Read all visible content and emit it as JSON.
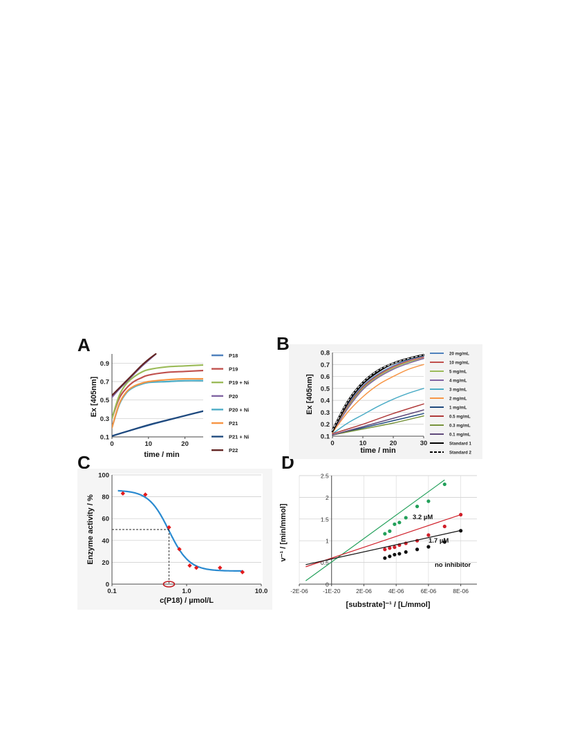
{
  "panels": {
    "A": {
      "letter": "A"
    },
    "B": {
      "letter": "B"
    },
    "C": {
      "letter": "C"
    },
    "D": {
      "letter": "D"
    }
  },
  "chart_data": [
    {
      "id": "A",
      "type": "line",
      "xlabel": "time / min",
      "ylabel": "Ex [405nm]",
      "xlim": [
        0,
        25
      ],
      "ylim": [
        0.1,
        1.0
      ],
      "xticks": [
        "0",
        "10",
        "20"
      ],
      "yticks": [
        "0.1",
        "0.3",
        "0.5",
        "0.7",
        "0.9"
      ],
      "grid": true,
      "legend_position": "right",
      "series": [
        {
          "name": "P18",
          "color": "#4f81bd",
          "x": [
            0,
            5,
            10,
            15,
            20,
            25
          ],
          "y": [
            0.11,
            0.17,
            0.225,
            0.28,
            0.33,
            0.38
          ]
        },
        {
          "name": "P19",
          "color": "#c0504d",
          "x": [
            0,
            2,
            4,
            6,
            8,
            10,
            15,
            20,
            25
          ],
          "y": [
            0.3,
            0.52,
            0.63,
            0.7,
            0.74,
            0.77,
            0.8,
            0.81,
            0.82
          ]
        },
        {
          "name": "P19 + Ni",
          "color": "#9bbb59",
          "x": [
            0,
            2,
            4,
            6,
            8,
            10,
            15,
            20,
            25
          ],
          "y": [
            0.3,
            0.55,
            0.68,
            0.75,
            0.8,
            0.83,
            0.86,
            0.87,
            0.88
          ]
        },
        {
          "name": "P20",
          "color": "#8064a2",
          "x": [
            0,
            2,
            4,
            6,
            8,
            10,
            12
          ],
          "y": [
            0.53,
            0.62,
            0.7,
            0.78,
            0.86,
            0.93,
            1.0
          ]
        },
        {
          "name": "P20 + Ni",
          "color": "#4bacc6",
          "x": [
            0,
            2,
            4,
            6,
            8,
            10,
            15,
            20,
            25
          ],
          "y": [
            0.2,
            0.45,
            0.58,
            0.64,
            0.67,
            0.69,
            0.7,
            0.71,
            0.71
          ]
        },
        {
          "name": "P21",
          "color": "#f79646",
          "x": [
            0,
            2,
            4,
            6,
            8,
            10,
            15,
            20,
            25
          ],
          "y": [
            0.2,
            0.46,
            0.59,
            0.65,
            0.68,
            0.7,
            0.72,
            0.73,
            0.73
          ]
        },
        {
          "name": "P21 + Ni",
          "color": "#1f497d",
          "x": [
            0,
            5,
            10,
            15,
            20,
            25
          ],
          "y": [
            0.11,
            0.17,
            0.23,
            0.28,
            0.33,
            0.38
          ]
        },
        {
          "name": "P22",
          "color": "#632523",
          "x": [
            0,
            2,
            4,
            6,
            8,
            10,
            12
          ],
          "y": [
            0.55,
            0.63,
            0.71,
            0.79,
            0.87,
            0.94,
            1.0
          ]
        }
      ]
    },
    {
      "id": "B",
      "type": "line",
      "xlabel": "time / min",
      "ylabel": "Ex [405nm]",
      "xlim": [
        0,
        30
      ],
      "ylim": [
        0.1,
        0.8
      ],
      "xticks": [
        "0",
        "10",
        "20",
        "30"
      ],
      "yticks": [
        "0.1",
        "0.2",
        "0.3",
        "0.4",
        "0.5",
        "0.6",
        "0.7",
        "0.8"
      ],
      "grid": true,
      "legend_position": "right",
      "series": [
        {
          "name": "20 mg/mL",
          "color": "#4f81bd",
          "x": [
            0,
            5,
            10,
            15,
            20,
            25,
            30
          ],
          "y": [
            0.13,
            0.36,
            0.52,
            0.62,
            0.69,
            0.74,
            0.77
          ]
        },
        {
          "name": "10 mg/mL",
          "color": "#c0504d",
          "x": [
            0,
            5,
            10,
            15,
            20,
            25,
            30
          ],
          "y": [
            0.13,
            0.35,
            0.51,
            0.61,
            0.68,
            0.73,
            0.76
          ]
        },
        {
          "name": "5 mg/mL",
          "color": "#9bbb59",
          "x": [
            0,
            5,
            10,
            15,
            20,
            25,
            30
          ],
          "y": [
            0.13,
            0.34,
            0.5,
            0.6,
            0.67,
            0.72,
            0.75
          ]
        },
        {
          "name": "4 mg/mL",
          "color": "#8064a2",
          "x": [
            0,
            5,
            10,
            15,
            20,
            25,
            30
          ],
          "y": [
            0.13,
            0.33,
            0.49,
            0.59,
            0.66,
            0.71,
            0.75
          ]
        },
        {
          "name": "3 mg/mL",
          "color": "#4bacc6",
          "x": [
            0,
            5,
            10,
            15,
            20,
            25,
            30
          ],
          "y": [
            0.12,
            0.21,
            0.28,
            0.35,
            0.41,
            0.46,
            0.5
          ]
        },
        {
          "name": "2 mg/mL",
          "color": "#f79646",
          "x": [
            0,
            5,
            10,
            15,
            20,
            25,
            30
          ],
          "y": [
            0.13,
            0.3,
            0.43,
            0.53,
            0.6,
            0.66,
            0.7
          ]
        },
        {
          "name": "1 mg/mL",
          "color": "#1f497d",
          "x": [
            0,
            10,
            20,
            30
          ],
          "y": [
            0.11,
            0.17,
            0.23,
            0.29
          ]
        },
        {
          "name": "0.5 mg/mL",
          "color": "#b03a3a",
          "x": [
            0,
            10,
            20,
            30
          ],
          "y": [
            0.12,
            0.2,
            0.29,
            0.37
          ]
        },
        {
          "name": "0.3 mg/mL",
          "color": "#77933c",
          "x": [
            0,
            10,
            20,
            30
          ],
          "y": [
            0.11,
            0.16,
            0.21,
            0.27
          ]
        },
        {
          "name": "0.1 mg/mL",
          "color": "#5f497a",
          "x": [
            0,
            10,
            20,
            30
          ],
          "y": [
            0.11,
            0.18,
            0.25,
            0.32
          ]
        },
        {
          "name": "Standard 1",
          "color": "#000000",
          "dash": false,
          "x": [
            0,
            5,
            10,
            15,
            20,
            25,
            30
          ],
          "y": [
            0.14,
            0.38,
            0.54,
            0.64,
            0.71,
            0.75,
            0.78
          ]
        },
        {
          "name": "Standard 2",
          "color": "#000000",
          "dash": true,
          "x": [
            0,
            5,
            10,
            15,
            20,
            25,
            30
          ],
          "y": [
            0.15,
            0.39,
            0.55,
            0.65,
            0.71,
            0.75,
            0.78
          ]
        }
      ]
    },
    {
      "id": "C",
      "type": "scatter",
      "xlabel": "c(P18) / µmol/L",
      "ylabel": "Enzyme activity / %",
      "xscale": "log",
      "xlim": [
        0.1,
        10.0
      ],
      "ylim": [
        0,
        100
      ],
      "xticks": [
        "0.1",
        "1.0",
        "10.0"
      ],
      "yticks": [
        "0",
        "20",
        "40",
        "60",
        "80",
        "100"
      ],
      "grid": true,
      "points": {
        "color": "#e31a1c",
        "x": [
          0.14,
          0.28,
          0.58,
          0.8,
          1.1,
          1.35,
          2.8,
          5.6
        ],
        "y": [
          83,
          82,
          52,
          32,
          17,
          15,
          15,
          11
        ]
      },
      "fit": {
        "color": "#2a8ad0",
        "bottom": 12,
        "top": 86,
        "ic50": 0.58,
        "hill": 3.2
      },
      "ic50_marker": {
        "x": 0.58,
        "y": 50
      }
    },
    {
      "id": "D",
      "type": "scatter",
      "xlabel": "[substrate]⁻¹ / [L/mmol]",
      "ylabel": "v⁻¹ / [min/mmol]",
      "xlim": [
        -2e-06,
        9e-06
      ],
      "ylim": [
        0,
        2.5
      ],
      "xticks": [
        "-2E-06",
        "-1E-20",
        "2E-06",
        "4E-06",
        "6E-06",
        "8E-06"
      ],
      "yticks": [
        "0",
        "0.5",
        "1",
        "1.5",
        "2",
        "2.5"
      ],
      "grid": true,
      "series": [
        {
          "name": "3.2 µM",
          "color": "#22a05a",
          "slope": 270000,
          "intercept": 0.51,
          "x": [
            3.3e-06,
            3.6e-06,
            3.9e-06,
            4.2e-06,
            4.6e-06,
            5.3e-06,
            6e-06,
            7e-06
          ],
          "y": [
            1.16,
            1.22,
            1.38,
            1.42,
            1.53,
            1.79,
            1.91,
            2.3
          ]
        },
        {
          "name": "1.7 µM",
          "color": "#d0202a",
          "slope": 125000,
          "intercept": 0.6,
          "x": [
            3.3e-06,
            3.6e-06,
            3.9e-06,
            4.2e-06,
            4.6e-06,
            5.3e-06,
            6e-06,
            7e-06,
            8e-06
          ],
          "y": [
            0.8,
            0.83,
            0.85,
            0.9,
            0.94,
            1.0,
            1.13,
            1.33,
            1.6
          ]
        },
        {
          "name": "no inhibitor",
          "color": "#111111",
          "slope": 82000,
          "intercept": 0.58,
          "x": [
            3.3e-06,
            3.6e-06,
            3.9e-06,
            4.2e-06,
            4.6e-06,
            5.3e-06,
            6e-06,
            7e-06,
            8e-06
          ],
          "y": [
            0.6,
            0.64,
            0.68,
            0.7,
            0.74,
            0.8,
            0.86,
            0.97,
            1.23
          ]
        }
      ]
    }
  ]
}
